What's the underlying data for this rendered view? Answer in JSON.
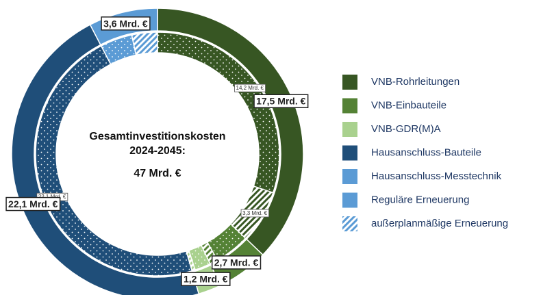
{
  "chart_data": {
    "type": "donut",
    "title": [
      "Gesamtinvestitionskosten",
      "2024-2045:"
    ],
    "total_label": "47 Mrd. €",
    "categories": [
      "VNB-Rohrleitungen",
      "VNB-Einbauteile",
      "VNB-GDR(M)A",
      "Hausanschluss-Bauteile",
      "Hausanschluss-Messtechnik"
    ],
    "colors": [
      "#375623",
      "#548235",
      "#a9d18e",
      "#1f4e79",
      "#5b9bd5"
    ],
    "values": [
      17.5,
      2.7,
      1.2,
      22.1,
      3.6
    ],
    "value_labels": [
      "17,5 Mrd. €",
      "2,7 Mrd. €",
      "1,2 Mrd. €",
      "22,1 Mrd. €",
      "3,6 Mrd. €"
    ],
    "inner_series": [
      {
        "name": "Reguläre Erneuerung",
        "color": "#5b9bd5",
        "pattern": "dots",
        "values": [
          14.2,
          2.2,
          1.0,
          22.1,
          2.0
        ],
        "value_labels": [
          "14,2 Mrd. €",
          null,
          null,
          "22,1 Mrd. €",
          null
        ]
      },
      {
        "name": "außerplanmäßige Erneuerung",
        "color": "#5b9bd5",
        "pattern": "hatch",
        "values": [
          3.3,
          0.5,
          0.2,
          0,
          1.6
        ],
        "value_labels": [
          "3,3 Mrd. €",
          null,
          null,
          null,
          null
        ]
      }
    ],
    "legend": "right"
  }
}
